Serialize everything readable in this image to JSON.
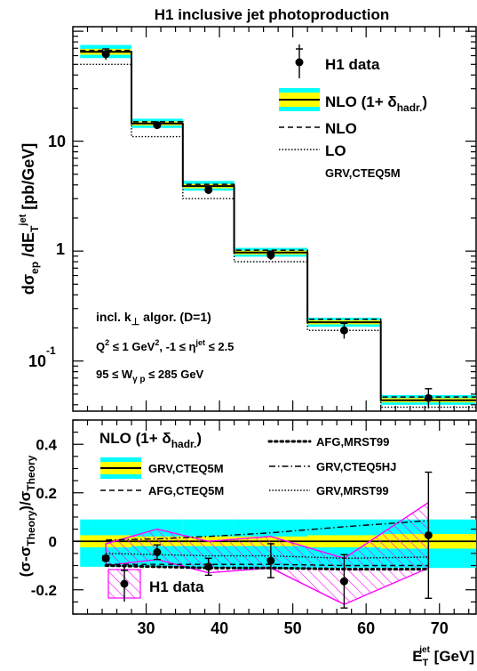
{
  "title": "H1 inclusive jet photoproduction",
  "chart_data": [
    {
      "type": "step",
      "panel": "upper",
      "yscale": "log",
      "ylim": [
        0.035,
        110
      ],
      "xlim": [
        20,
        75
      ],
      "ylabel": {
        "main": "dσ",
        "sub1": "ep",
        "mid": " /dE",
        "sub2": "T",
        "sup": "jet",
        "tail": " [pb/GeV]"
      },
      "ytick_labels": [
        "10",
        "-1",
        "1",
        "10"
      ],
      "bin_edges": [
        21,
        28,
        35,
        42,
        52,
        62,
        75
      ],
      "nlo_had": [
        65,
        14.5,
        3.9,
        0.97,
        0.225,
        0.044
      ],
      "nlo_had_band": {
        "lo": [
          57,
          13.2,
          3.55,
          0.89,
          0.205,
          0.04
        ],
        "hi": [
          75,
          16.0,
          4.35,
          1.07,
          0.248,
          0.049
        ]
      },
      "nlo": [
        67,
        15.0,
        4.05,
        1.02,
        0.24,
        0.047
      ],
      "lo": [
        50,
        11.0,
        3.0,
        0.8,
        0.19,
        0.038
      ],
      "h1_data": [
        {
          "x": 24.5,
          "y": 62,
          "elo": 55,
          "ehi": 69
        },
        {
          "x": 31.5,
          "y": 14.0,
          "elo": 13.3,
          "ehi": 14.8
        },
        {
          "x": 38.5,
          "y": 3.6,
          "elo": 3.35,
          "ehi": 3.85
        },
        {
          "x": 47,
          "y": 0.92,
          "elo": 0.83,
          "ehi": 1.0
        },
        {
          "x": 57,
          "y": 0.19,
          "elo": 0.16,
          "ehi": 0.22
        },
        {
          "x": 68.5,
          "y": 0.046,
          "elo": 0.037,
          "ehi": 0.056
        }
      ],
      "legend": {
        "h1_data": "H1 data",
        "nlo_had_main": "NLO (1+ δ",
        "nlo_had_sub": "hadr.",
        "nlo_had_close": ")",
        "nlo": "NLO",
        "lo": "LO",
        "pdf_note": "GRV,CTEQ5M"
      },
      "annotations": {
        "algo_main": "incl. k",
        "algo_sub": "⊥",
        "algo_tail": " algor. (D=1)",
        "cut1_a": "Q",
        "cut1_sup": "2",
        "cut1_b": " ≤ 1 GeV",
        "cut1_sup2": "2",
        "cut1_c": ",  -1 ≤ η",
        "cut1_sup3": "jet",
        "cut1_d": " ≤ 2.5",
        "cut2_a": "95 ≤ W",
        "cut2_sub": "γ p",
        "cut2_b": " ≤ 285 GeV"
      },
      "colors": {
        "band": "#00ffff",
        "central": "#ffff00",
        "line": "#000000"
      }
    },
    {
      "type": "ratio",
      "panel": "lower",
      "ylim": [
        -0.3,
        0.5
      ],
      "xlim": [
        20,
        75
      ],
      "ylabel": {
        "a": "(σ-σ",
        "sub1": "Theory",
        "b": ")/σ",
        "sub2": "Theory"
      },
      "yticks": [
        -0.2,
        0,
        0.2,
        0.4
      ],
      "ytick_labels": [
        "-0.2",
        "0",
        "0.2",
        "0.4"
      ],
      "xticks": [
        30,
        40,
        50,
        60,
        70
      ],
      "xtick_labels": [
        "30",
        "40",
        "50",
        "60",
        "70"
      ],
      "xlabel": {
        "a": "E",
        "sub": "T",
        "sup": "jet",
        "b": " [GeV]"
      },
      "bin_edges": [
        21,
        28,
        35,
        42,
        52,
        62,
        75
      ],
      "scale_band": {
        "lo": [
          -0.105,
          -0.105,
          -0.11,
          -0.115,
          -0.11,
          -0.11
        ],
        "hi": [
          0.09,
          0.09,
          0.09,
          0.09,
          0.09,
          0.09
        ]
      },
      "yellow_band": {
        "lo": [
          -0.025,
          -0.02,
          -0.02,
          -0.02,
          -0.025,
          -0.03
        ],
        "hi": [
          0.025,
          0.02,
          0.02,
          0.02,
          0.025,
          0.03
        ]
      },
      "afg_mrst99": {
        "x": [
          24.5,
          31.5,
          38.5,
          47,
          57,
          68.5
        ],
        "y": [
          -0.1,
          -0.105,
          -0.11,
          -0.11,
          -0.115,
          -0.115
        ]
      },
      "grv_cteq5hj": {
        "x": [
          24.5,
          31.5,
          38.5,
          47,
          57,
          68.5
        ],
        "y": [
          0.005,
          0.01,
          0.02,
          0.035,
          0.06,
          0.085
        ]
      },
      "grv_mrst99": {
        "x": [
          24.5,
          31.5,
          38.5,
          47,
          57,
          68.5
        ],
        "y": [
          -0.05,
          -0.055,
          -0.06,
          -0.06,
          -0.07,
          -0.065
        ]
      },
      "afg_cteq5m": {
        "x": [
          24.5,
          31.5,
          38.5,
          47,
          57,
          68.5
        ],
        "y": [
          -0.095,
          -0.095,
          -0.095,
          -0.095,
          -0.1,
          -0.1
        ]
      },
      "h1_band": {
        "x": [
          24.5,
          31.5,
          38.5,
          47,
          57,
          68.5
        ],
        "lo": [
          -0.1,
          -0.075,
          -0.13,
          -0.11,
          -0.26,
          -0.11
        ],
        "hi": [
          -0.01,
          0.05,
          0.0,
          0.02,
          -0.07,
          0.16
        ]
      },
      "h1_data": [
        {
          "x": 24.5,
          "y": -0.07,
          "elo": -0.08,
          "ehi": -0.06
        },
        {
          "x": 31.5,
          "y": -0.045,
          "elo": -0.075,
          "ehi": -0.015
        },
        {
          "x": 38.5,
          "y": -0.105,
          "elo": -0.14,
          "ehi": -0.07
        },
        {
          "x": 47,
          "y": -0.08,
          "elo": -0.15,
          "ehi": -0.01
        },
        {
          "x": 57,
          "y": -0.165,
          "elo": -0.275,
          "ehi": -0.055
        },
        {
          "x": 68.5,
          "y": 0.025,
          "elo": -0.235,
          "ehi": 0.285
        }
      ],
      "legend": {
        "header_main": "NLO (1+ δ",
        "header_sub": "hadr.",
        "header_close": ")",
        "grv_cteq5m": "GRV,CTEQ5M",
        "afg_cteq5m": "AFG,CTEQ5M",
        "afg_mrst99": "AFG,MRST99",
        "grv_cteq5hj": "GRV,CTEQ5HJ",
        "grv_mrst99": "GRV,MRST99",
        "h1_data": "H1 data"
      },
      "colors": {
        "band": "#00ffff",
        "central": "#ffff00",
        "hatch": "#ff00ff"
      }
    }
  ]
}
